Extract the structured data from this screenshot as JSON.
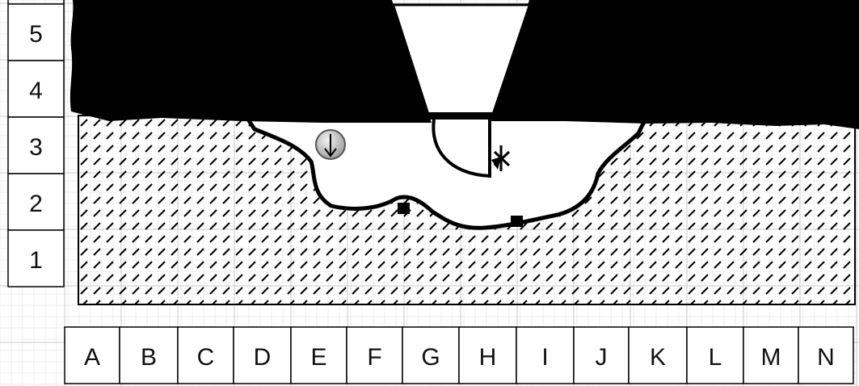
{
  "rows": [
    "5",
    "4",
    "3",
    "2",
    "1"
  ],
  "columns": [
    "A",
    "B",
    "C",
    "D",
    "E",
    "F",
    "G",
    "H",
    "I",
    "J",
    "K",
    "L",
    "M",
    "N"
  ],
  "markers": [
    {
      "name": "down-arrow-marker",
      "icon": "circled-down-arrow-icon"
    },
    {
      "name": "square-marker-left",
      "icon": "square-marker-icon"
    },
    {
      "name": "square-marker-right",
      "icon": "square-marker-icon"
    },
    {
      "name": "crossed-marker",
      "icon": "crossed-arrow-icon"
    }
  ],
  "colors": {
    "ink": "#000000",
    "grid_minor": "#ececec",
    "grid_major": "#c8c8c8",
    "marker_fill": "#c9c9c9"
  }
}
